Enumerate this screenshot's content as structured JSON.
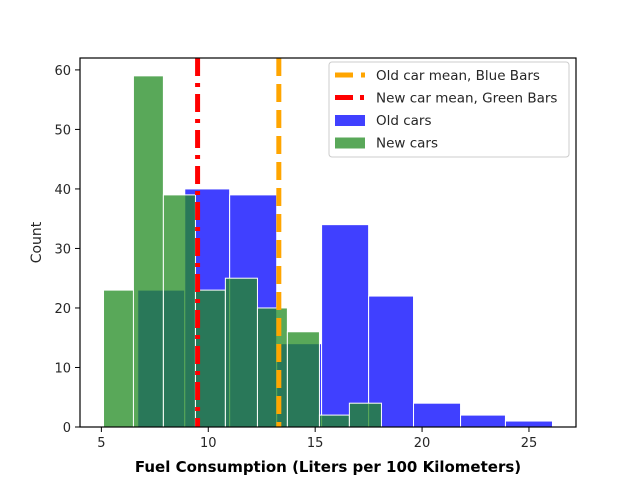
{
  "chart_data": {
    "type": "bar",
    "title": "",
    "xlabel": "Fuel Consumption (Liters per 100 Kilometers)",
    "ylabel": "Count",
    "xlim": [
      4.0,
      27.2
    ],
    "ylim": [
      0,
      62
    ],
    "xticks": [
      5,
      10,
      15,
      20,
      25
    ],
    "yticks": [
      0,
      10,
      20,
      30,
      40,
      50,
      60
    ],
    "grid": false,
    "legend_position": "top-right",
    "series": [
      {
        "name": "Old cars",
        "color": "#0000ff",
        "bins": [
          {
            "x0": 6.7,
            "x1": 8.9,
            "count": 23
          },
          {
            "x0": 8.9,
            "x1": 11.0,
            "count": 40
          },
          {
            "x0": 11.0,
            "x1": 13.2,
            "count": 39
          },
          {
            "x0": 13.2,
            "x1": 15.3,
            "count": 14
          },
          {
            "x0": 15.3,
            "x1": 17.5,
            "count": 34
          },
          {
            "x0": 17.5,
            "x1": 19.6,
            "count": 22
          },
          {
            "x0": 19.6,
            "x1": 21.8,
            "count": 4
          },
          {
            "x0": 21.8,
            "x1": 23.9,
            "count": 2
          },
          {
            "x0": 23.9,
            "x1": 26.1,
            "count": 1
          }
        ]
      },
      {
        "name": "New cars",
        "color": "#228b22",
        "bins": [
          {
            "x0": 5.1,
            "x1": 6.5,
            "count": 23
          },
          {
            "x0": 6.5,
            "x1": 7.9,
            "count": 59
          },
          {
            "x0": 7.9,
            "x1": 9.4,
            "count": 39
          },
          {
            "x0": 9.4,
            "x1": 10.8,
            "count": 23
          },
          {
            "x0": 10.8,
            "x1": 12.3,
            "count": 25
          },
          {
            "x0": 12.3,
            "x1": 13.7,
            "count": 20
          },
          {
            "x0": 13.7,
            "x1": 15.2,
            "count": 16
          },
          {
            "x0": 15.2,
            "x1": 16.6,
            "count": 2
          },
          {
            "x0": 16.6,
            "x1": 18.1,
            "count": 4
          }
        ]
      }
    ],
    "mean_lines": [
      {
        "name": "Old car mean, Blue Bars",
        "x": 13.3,
        "color": "#ffa500",
        "style": "dashed"
      },
      {
        "name": "New car mean, Green Bars",
        "x": 9.5,
        "color": "#ff0000",
        "style": "dashdot"
      }
    ]
  }
}
